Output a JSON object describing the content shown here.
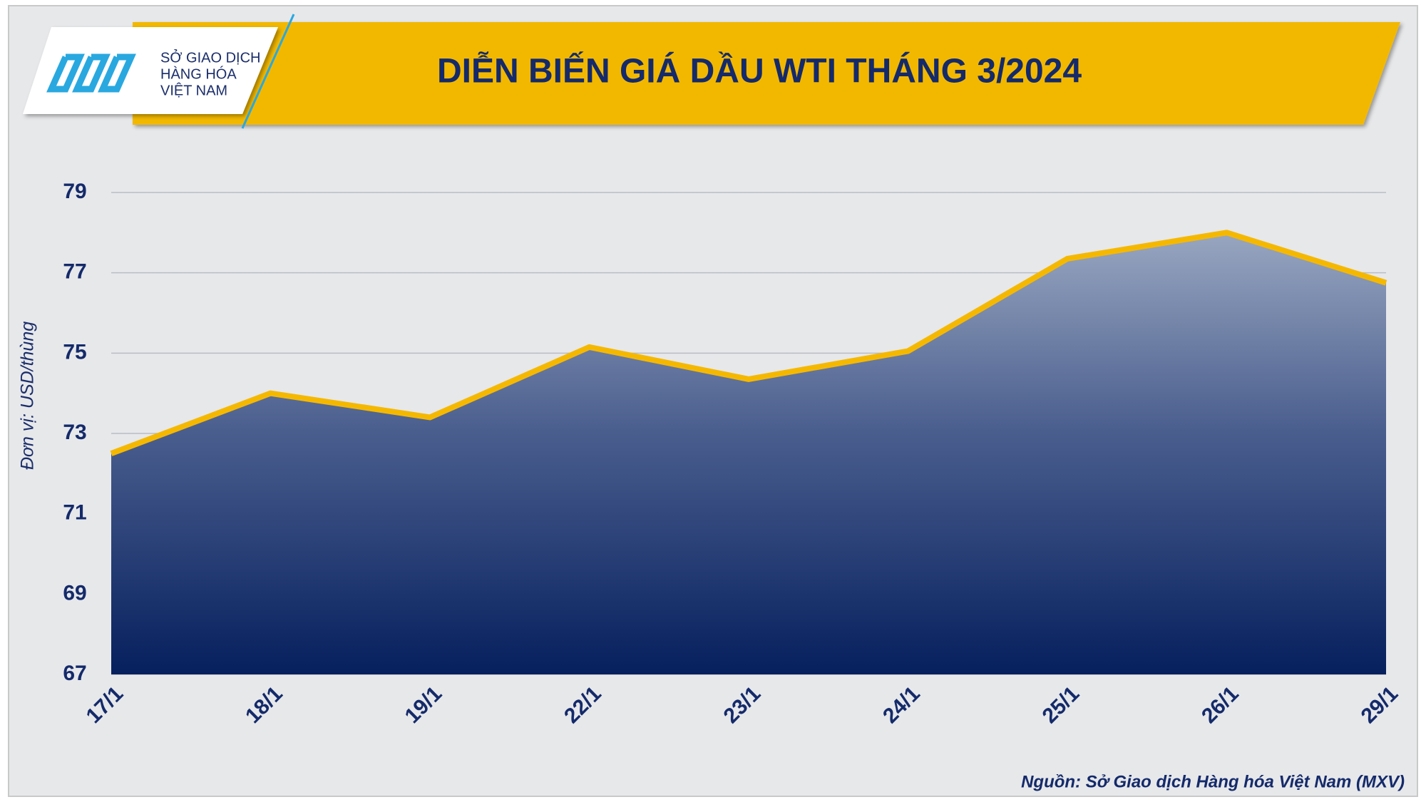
{
  "logo": [
    "SỞ GIAO DỊCH",
    "HÀNG HÓA",
    "VIỆT NAM"
  ],
  "chart_data": {
    "type": "area",
    "title": "DIỄN BIẾN GIÁ DẦU WTI THÁNG 3/2024",
    "y_label": "Đơn vị: USD/thùng",
    "source": "Nguồn: Sở Giao dịch Hàng hóa Việt Nam (MXV)",
    "categories": [
      "17/1",
      "18/1",
      "19/1",
      "22/1",
      "23/1",
      "24/1",
      "25/1",
      "26/1",
      "29/1"
    ],
    "values": [
      72.5,
      74.0,
      73.4,
      75.15,
      74.35,
      75.05,
      77.35,
      78.0,
      76.75
    ],
    "color": "#f5b800",
    "ylim": [
      67,
      79
    ],
    "yticks": [
      67,
      69,
      71,
      73,
      75,
      77,
      79
    ],
    "grid": true
  }
}
